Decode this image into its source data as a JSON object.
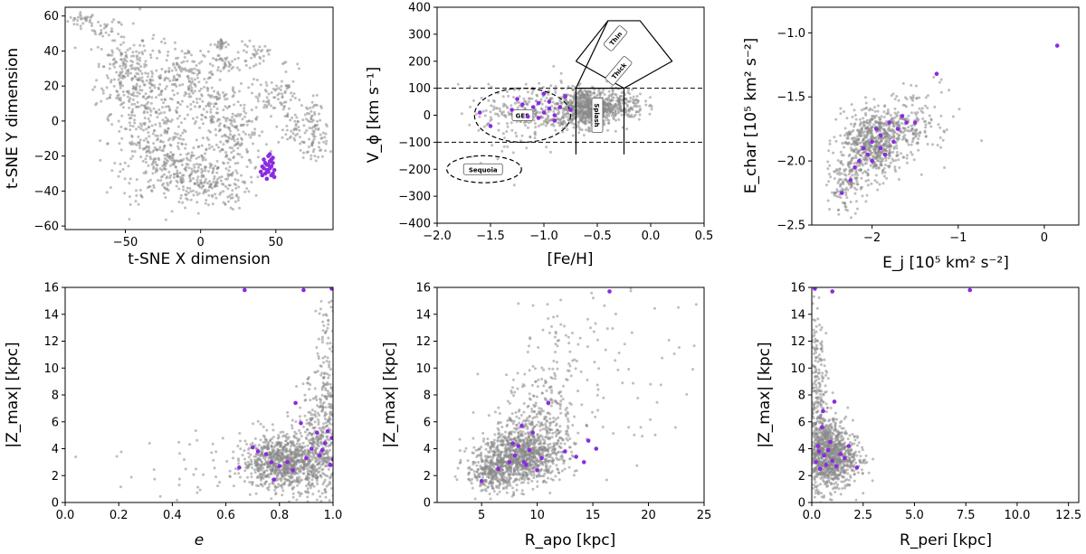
{
  "colors": {
    "background": "#888888",
    "highlight": "#8a2be2",
    "axis": "#000000"
  },
  "chart_data": [
    {
      "type": "scatter",
      "xlabel": "t-SNE X dimension",
      "ylabel": "t-SNE Y dimension",
      "xlim": [
        -90,
        88
      ],
      "ylim": [
        -62,
        65
      ],
      "xticks": [
        -50,
        0,
        50
      ],
      "xtick_labels": [
        "−50",
        "0",
        "50"
      ],
      "yticks": [
        -60,
        -40,
        -20,
        0,
        20,
        40,
        60
      ],
      "ytick_labels": [
        "−60",
        "−40",
        "−20",
        "0",
        "20",
        "40",
        "60"
      ],
      "background_regions": [
        {
          "cx": -78,
          "cy": 58,
          "sx": 5,
          "sy": 2,
          "n": 30
        },
        {
          "cx": -62,
          "cy": 52,
          "sx": 5,
          "sy": 3,
          "n": 25
        },
        {
          "cx": -52,
          "cy": 28,
          "sx": 9,
          "sy": 12,
          "n": 170
        },
        {
          "cx": -35,
          "cy": 5,
          "sx": 12,
          "sy": 18,
          "n": 260
        },
        {
          "cx": -20,
          "cy": -25,
          "sx": 16,
          "sy": 11,
          "n": 240
        },
        {
          "cx": 5,
          "cy": -35,
          "sx": 14,
          "sy": 8,
          "n": 190
        },
        {
          "cx": -10,
          "cy": 25,
          "sx": 10,
          "sy": 9,
          "n": 140
        },
        {
          "cx": 10,
          "cy": 5,
          "sx": 10,
          "sy": 9,
          "n": 130
        },
        {
          "cx": 25,
          "cy": -10,
          "sx": 8,
          "sy": 10,
          "n": 110
        },
        {
          "cx": 15,
          "cy": 32,
          "sx": 6,
          "sy": 4,
          "n": 40
        },
        {
          "cx": 14,
          "cy": 44,
          "sx": 2,
          "sy": 2,
          "n": 25
        },
        {
          "cx": 35,
          "cy": 38,
          "sx": 5,
          "sy": 3,
          "n": 35
        },
        {
          "cx": 45,
          "cy": 15,
          "sx": 6,
          "sy": 5,
          "n": 40
        },
        {
          "cx": 57,
          "cy": 18,
          "sx": 4,
          "sy": 10,
          "n": 45
        },
        {
          "cx": 72,
          "cy": 0,
          "sx": 4,
          "sy": 7,
          "n": 50
        },
        {
          "cx": 76,
          "cy": -15,
          "sx": 4,
          "sy": 6,
          "n": 45
        },
        {
          "cx": 60,
          "cy": -5,
          "sx": 5,
          "sy": 5,
          "n": 30
        }
      ],
      "highlight_points": [
        [
          42,
          -22
        ],
        [
          44,
          -25
        ],
        [
          46,
          -27
        ],
        [
          48,
          -24
        ],
        [
          43,
          -30
        ],
        [
          47,
          -31
        ],
        [
          45,
          -20
        ],
        [
          49,
          -28
        ],
        [
          41,
          -26
        ],
        [
          46,
          -23
        ],
        [
          44,
          -33
        ],
        [
          48,
          -21
        ],
        [
          40,
          -29
        ],
        [
          47,
          -26
        ],
        [
          45,
          -29
        ],
        [
          43,
          -24
        ],
        [
          49,
          -32
        ],
        [
          46,
          -19
        ],
        [
          42,
          -27
        ],
        [
          48,
          -30
        ],
        [
          44,
          -28
        ],
        [
          47,
          -22
        ],
        [
          41,
          -31
        ],
        [
          45,
          -25
        ]
      ]
    },
    {
      "type": "scatter",
      "xlabel": "[Fe/H]",
      "ylabel": "V_ϕ [km s⁻¹]",
      "xlim": [
        -2.0,
        0.5
      ],
      "ylim": [
        -400,
        400
      ],
      "xticks": [
        -2.0,
        -1.5,
        -1.0,
        -0.5,
        0.0,
        0.5
      ],
      "xtick_labels": [
        "−2.0",
        "−1.5",
        "−1.0",
        "−0.5",
        "0.0",
        "0.5"
      ],
      "yticks": [
        -400,
        -300,
        -200,
        -100,
        0,
        100,
        200,
        300,
        400
      ],
      "ytick_labels": [
        "−400",
        "−300",
        "−200",
        "−100",
        "0",
        "100",
        "200",
        "300",
        "400"
      ],
      "background_regions": [
        {
          "cx": -0.6,
          "cy": 30,
          "sx": 0.12,
          "sy": 35,
          "n": 600
        },
        {
          "cx": -1.0,
          "cy": 20,
          "sx": 0.25,
          "sy": 45,
          "n": 260
        },
        {
          "cx": -0.3,
          "cy": 40,
          "sx": 0.12,
          "sy": 30,
          "n": 200
        },
        {
          "cx": -1.4,
          "cy": -40,
          "sx": 0.2,
          "sy": 70,
          "n": 60
        }
      ],
      "highlight_points": [
        [
          -1.3,
          20
        ],
        [
          -1.2,
          40
        ],
        [
          -1.1,
          30
        ],
        [
          -1.0,
          10
        ],
        [
          -0.95,
          50
        ],
        [
          -0.9,
          0
        ],
        [
          -1.05,
          -10
        ],
        [
          -0.85,
          30
        ],
        [
          -1.15,
          -5
        ],
        [
          -1.5,
          -40
        ],
        [
          -1.6,
          10
        ],
        [
          -1.0,
          80
        ],
        [
          -0.8,
          70
        ],
        [
          -0.75,
          20
        ],
        [
          -1.25,
          60
        ],
        [
          -0.95,
          25
        ],
        [
          -1.05,
          45
        ],
        [
          -0.9,
          -20
        ]
      ],
      "regions": [
        {
          "name": "Thin",
          "text_x": -0.33,
          "text_y": 285,
          "rotate": 50
        },
        {
          "name": "Thick",
          "text_x": -0.3,
          "text_y": 165,
          "rotate": 50
        },
        {
          "name": "Splash",
          "text_x": -0.5,
          "text_y": 0,
          "rotate": -90
        },
        {
          "name": "GES",
          "text_x": -1.2,
          "text_y": 0,
          "rotate": 0
        },
        {
          "name": "Sequoia",
          "text_x": -1.57,
          "text_y": -200,
          "rotate": 0
        }
      ],
      "lines": {
        "hlines": [
          100,
          -100
        ],
        "vlines": [
          {
            "x": -0.7,
            "y0": -145,
            "y1": 100
          },
          {
            "x": -0.25,
            "y0": -145,
            "y1": 100
          }
        ],
        "thick_thin_polygon": [
          [
            -0.7,
            100
          ],
          [
            -0.4,
            350
          ],
          [
            -0.1,
            350
          ],
          [
            0.2,
            200
          ],
          [
            -0.25,
            100
          ]
        ],
        "thin_lower": [
          [
            -0.7,
            200
          ],
          [
            -0.4,
            350
          ]
        ],
        "thick_upper": [
          [
            -0.7,
            200
          ],
          [
            -0.25,
            100
          ]
        ]
      },
      "ellipses": [
        {
          "cx": -1.2,
          "cy": 0,
          "rx": 0.45,
          "ry": 100
        },
        {
          "cx": -1.56,
          "cy": -200,
          "rx": 0.35,
          "ry": 50
        }
      ]
    },
    {
      "type": "scatter",
      "xlabel": "E_j [10⁵ km² s⁻²]",
      "ylabel": "E_char [10⁵ km² s⁻²]",
      "xlim": [
        -2.7,
        0.4
      ],
      "ylim": [
        -2.5,
        -0.8
      ],
      "xticks": [
        -2,
        -1,
        0
      ],
      "xtick_labels": [
        "−2",
        "−1",
        "0"
      ],
      "yticks": [
        -2.5,
        -2.0,
        -1.5,
        -1.0
      ],
      "ytick_labels": [
        "−2.5",
        "−2.0",
        "−1.5",
        "−1.0"
      ],
      "background_regions": [
        {
          "cx": -2.0,
          "cy": -1.9,
          "sx": 0.18,
          "sy": 0.12,
          "n": 500
        },
        {
          "cx": -1.8,
          "cy": -1.75,
          "sx": 0.25,
          "sy": 0.1,
          "n": 250
        },
        {
          "cx": -2.3,
          "cy": -2.2,
          "sx": 0.1,
          "sy": 0.1,
          "n": 120
        },
        {
          "cx": -1.4,
          "cy": -1.6,
          "sx": 0.2,
          "sy": 0.12,
          "n": 60
        }
      ],
      "highlight_points": [
        [
          -2.35,
          -2.25
        ],
        [
          -2.2,
          -2.05
        ],
        [
          -2.1,
          -1.9
        ],
        [
          -2.0,
          -1.85
        ],
        [
          -1.9,
          -1.8
        ],
        [
          -1.85,
          -1.95
        ],
        [
          -2.05,
          -1.95
        ],
        [
          -1.8,
          -1.7
        ],
        [
          -1.7,
          -1.75
        ],
        [
          -1.6,
          -1.7
        ],
        [
          -1.95,
          -1.75
        ],
        [
          -2.15,
          -2.0
        ],
        [
          -1.75,
          -1.85
        ],
        [
          -1.5,
          -1.7
        ],
        [
          -1.25,
          -1.32
        ],
        [
          0.15,
          -1.1
        ],
        [
          -2.0,
          -2.0
        ],
        [
          -1.9,
          -1.9
        ],
        [
          -2.25,
          -2.15
        ],
        [
          -1.65,
          -1.65
        ]
      ]
    },
    {
      "type": "scatter",
      "xlabel": "e",
      "ylabel": "|Z_max| [kpc]",
      "xlim": [
        0.0,
        1.0
      ],
      "ylim": [
        0,
        16
      ],
      "xticks": [
        0.0,
        0.2,
        0.4,
        0.6,
        0.8,
        1.0
      ],
      "xtick_labels": [
        "0.0",
        "0.2",
        "0.4",
        "0.6",
        "0.8",
        "1.0"
      ],
      "yticks": [
        0,
        2,
        4,
        6,
        8,
        10,
        12,
        14,
        16
      ],
      "ytick_labels": [
        "0",
        "2",
        "4",
        "6",
        "8",
        "10",
        "12",
        "14",
        "16"
      ],
      "background_regions": [
        {
          "cx": 0.82,
          "cy": 3.0,
          "sx": 0.08,
          "sy": 1.0,
          "n": 900
        },
        {
          "cx": 0.95,
          "cy": 4.5,
          "sx": 0.04,
          "sy": 2.5,
          "n": 350
        },
        {
          "cx": 0.98,
          "cy": 9.0,
          "sx": 0.02,
          "sy": 3.5,
          "n": 120
        },
        {
          "cx": 0.5,
          "cy": 3.0,
          "sx": 0.15,
          "sy": 1.5,
          "n": 40
        }
      ],
      "highlight_points": [
        [
          0.65,
          2.6
        ],
        [
          0.7,
          4.1
        ],
        [
          0.72,
          3.8
        ],
        [
          0.75,
          3.6
        ],
        [
          0.77,
          3.0
        ],
        [
          0.78,
          1.7
        ],
        [
          0.8,
          2.7
        ],
        [
          0.83,
          3.0
        ],
        [
          0.85,
          2.4
        ],
        [
          0.86,
          7.4
        ],
        [
          0.88,
          5.9
        ],
        [
          0.9,
          3.3
        ],
        [
          0.92,
          4.0
        ],
        [
          0.95,
          3.5
        ],
        [
          0.97,
          4.4
        ],
        [
          0.98,
          5.3
        ],
        [
          0.99,
          2.8
        ],
        [
          1.0,
          3.2
        ],
        [
          0.995,
          4.8
        ],
        [
          0.67,
          15.8
        ],
        [
          0.89,
          15.8
        ],
        [
          0.995,
          15.9
        ],
        [
          0.94,
          5.2
        ],
        [
          0.96,
          3.9
        ]
      ]
    },
    {
      "type": "scatter",
      "xlabel": "R_apo [kpc]",
      "ylabel": "|Z_max| [kpc]",
      "xlim": [
        1,
        25
      ],
      "ylim": [
        0,
        16
      ],
      "xticks": [
        5,
        10,
        15,
        20,
        25
      ],
      "xtick_labels": [
        "5",
        "10",
        "15",
        "20",
        "25"
      ],
      "yticks": [
        0,
        2,
        4,
        6,
        8,
        10,
        12,
        14,
        16
      ],
      "ytick_labels": [
        "0",
        "2",
        "4",
        "6",
        "8",
        "10",
        "12",
        "14",
        "16"
      ],
      "background_regions": [
        {
          "cx": 8.5,
          "cy": 3.5,
          "sx": 1.8,
          "sy": 1.0,
          "n": 800
        },
        {
          "cx": 6.0,
          "cy": 2.2,
          "sx": 1.2,
          "sy": 0.7,
          "n": 300
        },
        {
          "cx": 10.0,
          "cy": 5.5,
          "sx": 1.5,
          "sy": 1.8,
          "n": 300
        },
        {
          "cx": 12.0,
          "cy": 9.0,
          "sx": 2.5,
          "sy": 3.0,
          "n": 120
        },
        {
          "cx": 18.0,
          "cy": 10.0,
          "sx": 4.0,
          "sy": 4.0,
          "n": 60
        }
      ],
      "highlight_points": [
        [
          5.0,
          1.6
        ],
        [
          6.5,
          2.5
        ],
        [
          7.5,
          3.0
        ],
        [
          8.0,
          3.5
        ],
        [
          8.3,
          4.2
        ],
        [
          8.6,
          5.7
        ],
        [
          9.0,
          2.8
        ],
        [
          9.3,
          3.9
        ],
        [
          9.6,
          5.2
        ],
        [
          10.0,
          2.4
        ],
        [
          10.4,
          3.3
        ],
        [
          11.0,
          7.4
        ],
        [
          12.5,
          3.8
        ],
        [
          13.5,
          3.4
        ],
        [
          14.2,
          3.0
        ],
        [
          14.6,
          4.6
        ],
        [
          15.3,
          4.0
        ],
        [
          16.5,
          15.7
        ],
        [
          8.8,
          3.0
        ],
        [
          7.8,
          4.4
        ]
      ]
    },
    {
      "type": "scatter",
      "xlabel": "R_peri [kpc]",
      "ylabel": "|Z_max| [kpc]",
      "xlim": [
        0.0,
        13.0
      ],
      "ylim": [
        0,
        16
      ],
      "xticks": [
        0.0,
        2.5,
        5.0,
        7.5,
        10.0,
        12.5
      ],
      "xtick_labels": [
        "0.0",
        "2.5",
        "5.0",
        "7.5",
        "10.0",
        "12.5"
      ],
      "yticks": [
        0,
        2,
        4,
        6,
        8,
        10,
        12,
        14,
        16
      ],
      "ytick_labels": [
        "0",
        "2",
        "4",
        "6",
        "8",
        "10",
        "12",
        "14",
        "16"
      ],
      "background_regions": [
        {
          "cx": 0.8,
          "cy": 3.5,
          "sx": 0.6,
          "sy": 1.3,
          "n": 900
        },
        {
          "cx": 0.3,
          "cy": 6.0,
          "sx": 0.3,
          "sy": 2.5,
          "n": 250
        },
        {
          "cx": 0.2,
          "cy": 10.0,
          "sx": 0.2,
          "sy": 3.0,
          "n": 120
        },
        {
          "cx": 1.8,
          "cy": 3.0,
          "sx": 0.5,
          "sy": 1.0,
          "n": 80
        }
      ],
      "highlight_points": [
        [
          0.2,
          3.0
        ],
        [
          0.3,
          4.2
        ],
        [
          0.4,
          2.5
        ],
        [
          0.5,
          5.6
        ],
        [
          0.6,
          3.5
        ],
        [
          0.7,
          2.8
        ],
        [
          0.8,
          3.9
        ],
        [
          0.9,
          4.5
        ],
        [
          1.0,
          3.1
        ],
        [
          1.1,
          7.5
        ],
        [
          1.2,
          2.7
        ],
        [
          1.4,
          3.6
        ],
        [
          1.6,
          3.3
        ],
        [
          1.8,
          4.2
        ],
        [
          2.2,
          2.6
        ],
        [
          0.15,
          15.9
        ],
        [
          1.0,
          15.7
        ],
        [
          7.7,
          15.8
        ],
        [
          0.35,
          3.8
        ],
        [
          0.55,
          6.8
        ]
      ]
    }
  ]
}
